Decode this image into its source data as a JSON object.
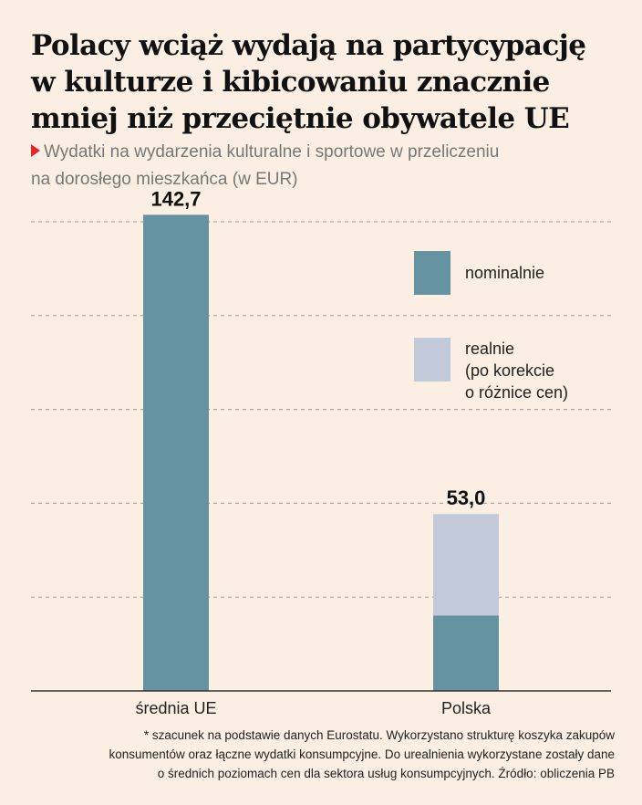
{
  "title_lines": [
    "Polacy wciąż wydają na partycypację",
    "w kulturze i kibicowaniu znacznie",
    "mniej niż przeciętnie obywatele UE"
  ],
  "subtitle_lines": [
    "Wydatki na wydarzenia kulturalne i sportowe w przeliczeniu",
    "na dorosłego mieszkańca (w EUR)"
  ],
  "colors": {
    "nominal": "#6693a1",
    "real": "#c2c9d9",
    "grid": "#9a9a9a",
    "axis": "#333333",
    "accent": "#e3262a"
  },
  "chart_data": {
    "type": "bar",
    "stacked": true,
    "categories": [
      "średnia UE",
      "Polska"
    ],
    "series": [
      {
        "name": "nominalnie",
        "values": [
          142.7,
          22.6
        ]
      },
      {
        "name": "realnie (po korekcie o różnice cen)",
        "values": [
          0,
          30.4
        ]
      }
    ],
    "data_labels": [
      "142,7",
      "53,0"
    ],
    "totals": [
      142.7,
      53.0
    ],
    "ylim": [
      0,
      140.6
    ],
    "grid": true,
    "grid_values": [
      0,
      28.12,
      56.24,
      84.36,
      112.48,
      140.6
    ],
    "legend": [
      {
        "key": "nominal",
        "lines": [
          "nominalnie"
        ]
      },
      {
        "key": "real",
        "lines": [
          "realnie",
          "(po korekcie",
          "o różnice cen)"
        ]
      }
    ],
    "legend_position": "right"
  },
  "footnote_lines": [
    "* szacunek na podstawie danych Eurostatu. Wykorzystano strukturę koszyka zakupów",
    "konsumentów oraz łączne wydatki konsumpcyjne. Do urealnienia wykorzystane zostały dane",
    "o średnich poziomach cen dla sektora usług konsumpcyjnych. Źródło: obliczenia PB"
  ]
}
